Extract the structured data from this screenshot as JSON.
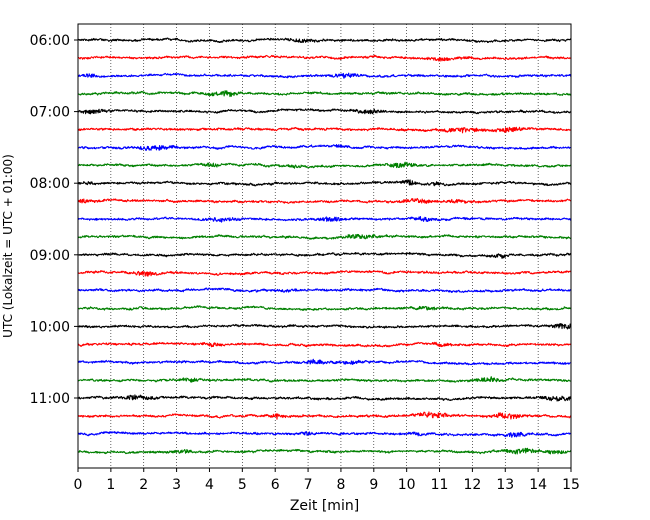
{
  "chart_data": {
    "type": "line",
    "title": "",
    "xlabel": "Zeit  [min]",
    "ylabel": "UTC (Lokalzeit = UTC + 01:00)",
    "xlim": [
      0,
      15
    ],
    "x_ticks": [
      "0",
      "1",
      "2",
      "3",
      "4",
      "5",
      "6",
      "7",
      "8",
      "9",
      "10",
      "11",
      "12",
      "13",
      "14",
      "15"
    ],
    "y_ticks": [
      "06:00",
      "07:00",
      "08:00",
      "09:00",
      "10:00",
      "11:00"
    ],
    "grid": "vertical dotted at each minute",
    "trace_interval_min": 15,
    "color_cycle": [
      "#000000",
      "#ff0000",
      "#0000ff",
      "#008000"
    ],
    "series": [
      {
        "start": "06:00",
        "color": "#000000"
      },
      {
        "start": "06:15",
        "color": "#ff0000"
      },
      {
        "start": "06:30",
        "color": "#0000ff"
      },
      {
        "start": "06:45",
        "color": "#008000"
      },
      {
        "start": "07:00",
        "color": "#000000"
      },
      {
        "start": "07:15",
        "color": "#ff0000"
      },
      {
        "start": "07:30",
        "color": "#0000ff"
      },
      {
        "start": "07:45",
        "color": "#008000"
      },
      {
        "start": "08:00",
        "color": "#000000"
      },
      {
        "start": "08:15",
        "color": "#ff0000"
      },
      {
        "start": "08:30",
        "color": "#0000ff"
      },
      {
        "start": "08:45",
        "color": "#008000"
      },
      {
        "start": "09:00",
        "color": "#000000"
      },
      {
        "start": "09:15",
        "color": "#ff0000"
      },
      {
        "start": "09:30",
        "color": "#0000ff"
      },
      {
        "start": "09:45",
        "color": "#008000"
      },
      {
        "start": "10:00",
        "color": "#000000"
      },
      {
        "start": "10:15",
        "color": "#ff0000"
      },
      {
        "start": "10:30",
        "color": "#0000ff"
      },
      {
        "start": "10:45",
        "color": "#008000"
      },
      {
        "start": "11:00",
        "color": "#000000"
      },
      {
        "start": "11:15",
        "color": "#ff0000"
      },
      {
        "start": "11:30",
        "color": "#0000ff"
      },
      {
        "start": "11:45",
        "color": "#008000"
      }
    ]
  }
}
